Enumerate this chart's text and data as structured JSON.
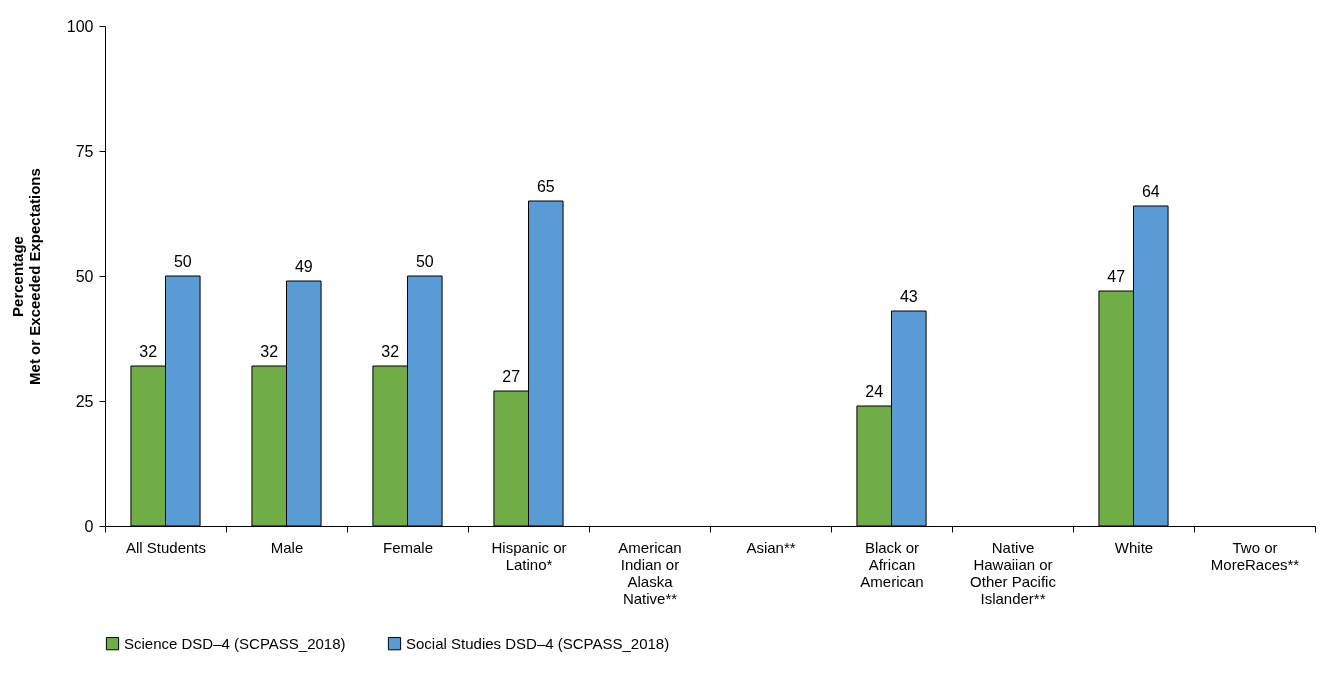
{
  "chart_data": {
    "type": "bar",
    "ylabel": "Percentage\nMet or Exceeded Expectations",
    "categories": [
      "All Students",
      "Male",
      "Female",
      "Hispanic or Latino*",
      "American Indian or Alaska Native**",
      "Asian**",
      "Black or African American",
      "Native Hawaiian or Other Pacific Islander**",
      "White",
      "Two or MoreRaces**"
    ],
    "series": [
      {
        "name": "Science DSD–4 (SCPASS_2018)",
        "color": "#70ad47",
        "values": [
          32,
          32,
          32,
          27,
          null,
          null,
          24,
          null,
          47,
          null
        ]
      },
      {
        "name": "Social Studies DSD–4 (SCPASS_2018)",
        "color": "#5b9bd5",
        "values": [
          50,
          49,
          50,
          65,
          null,
          null,
          43,
          null,
          64,
          null
        ]
      }
    ],
    "ylim": [
      0,
      100
    ],
    "yticks": [
      0,
      25,
      50,
      75,
      100
    ],
    "grid": false,
    "legend": "bottom",
    "data_labels": true
  }
}
